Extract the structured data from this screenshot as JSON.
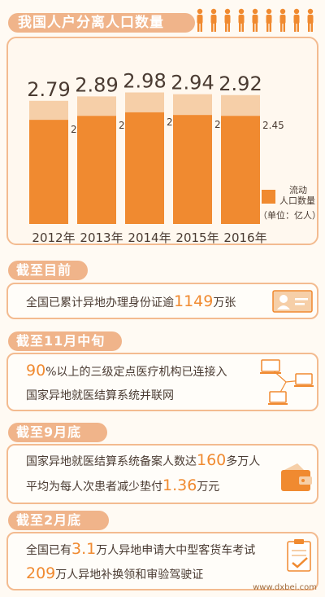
{
  "title": "我国人户分离人口数量",
  "colors": {
    "accent": "#f08a30",
    "light": "#f6cfa8",
    "pill": "#f0b48a"
  },
  "chart_data": {
    "type": "bar",
    "categories": [
      "2012年",
      "2013年",
      "2014年",
      "2015年",
      "2016年"
    ],
    "series": [
      {
        "name": "",
        "values": [
          2.79,
          2.89,
          2.98,
          2.94,
          2.92
        ]
      },
      {
        "name": "流动人口数量",
        "values": [
          2.36,
          2.45,
          2.53,
          2.47,
          2.45
        ]
      }
    ],
    "legend": {
      "label": "流动\n人口数量",
      "unit": "（单位：亿人）"
    },
    "ylim": [
      0,
      3.1
    ]
  },
  "sections": [
    {
      "heading": "截至目前",
      "lines": [
        {
          "pre": "全国已累计异地办理身份证逾",
          "num": "1149",
          "post": "万张"
        }
      ]
    },
    {
      "heading": "截至11月中旬",
      "lines": [
        {
          "pre": "",
          "num": "90",
          "post": "%以上的三级定点医疗机构已连接入"
        },
        {
          "pre": "国家异地就医结算系统并联网",
          "num": "",
          "post": ""
        }
      ]
    },
    {
      "heading": "截至9月底",
      "lines": [
        {
          "pre": "国家异地就医结算系统备案人数达",
          "num": "160",
          "post": "多万人"
        },
        {
          "pre": "平均为每人次患者减少垫付",
          "num": "1.36",
          "post": "万元"
        }
      ]
    },
    {
      "heading": "截至2月底",
      "lines": [
        {
          "pre": "全国已有",
          "num": "3.1",
          "post": "万人异地申请大中型客货车考试"
        },
        {
          "pre": "",
          "num": "209",
          "post": "万人异地补换领和审验驾驶证"
        }
      ]
    }
  ],
  "watermark": "www.dxbei.com"
}
